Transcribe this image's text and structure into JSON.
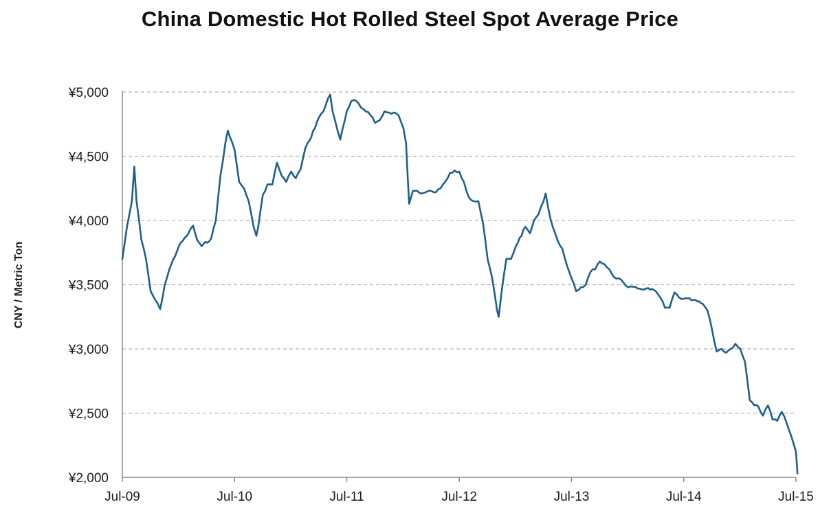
{
  "chart_data": {
    "type": "line",
    "title": "China Domestic Hot Rolled Steel Spot Average Price",
    "xlabel": "",
    "ylabel": "CNY / Metric Ton",
    "ylim": [
      2000,
      5000
    ],
    "xlim": [
      "2009-07",
      "2015-07"
    ],
    "grid": true,
    "legend": "none",
    "colors": {
      "line": "#1f5f8b",
      "grid": "#b5b5b5",
      "axis": "#8a8a8a"
    },
    "y_ticks": [
      {
        "value": 2000,
        "label": "¥2,000"
      },
      {
        "value": 2500,
        "label": "¥2,500"
      },
      {
        "value": 3000,
        "label": "¥3,000"
      },
      {
        "value": 3500,
        "label": "¥3,500"
      },
      {
        "value": 4000,
        "label": "¥4,000"
      },
      {
        "value": 4500,
        "label": "¥4,500"
      },
      {
        "value": 5000,
        "label": "¥5,000"
      }
    ],
    "x_ticks": [
      {
        "value": "2009-07",
        "label": "Jul-09"
      },
      {
        "value": "2010-07",
        "label": "Jul-10"
      },
      {
        "value": "2011-07",
        "label": "Jul-11"
      },
      {
        "value": "2012-07",
        "label": "Jul-12"
      },
      {
        "value": "2013-07",
        "label": "Jul-13"
      },
      {
        "value": "2014-07",
        "label": "Jul-14"
      },
      {
        "value": "2015-07",
        "label": "Jul-15"
      }
    ],
    "series": [
      {
        "values": [
          [
            "2009-07-01",
            3700
          ],
          [
            "2009-07-16",
            3950
          ],
          [
            "2009-08-01",
            4150
          ],
          [
            "2009-08-09",
            4420
          ],
          [
            "2009-08-16",
            4150
          ],
          [
            "2009-09-01",
            3850
          ],
          [
            "2009-09-16",
            3700
          ],
          [
            "2009-10-01",
            3450
          ],
          [
            "2009-10-16",
            3380
          ],
          [
            "2009-11-01",
            3310
          ],
          [
            "2009-11-16",
            3500
          ],
          [
            "2009-12-01",
            3620
          ],
          [
            "2010-01-01",
            3800
          ],
          [
            "2010-02-01",
            3900
          ],
          [
            "2010-02-16",
            3960
          ],
          [
            "2010-03-01",
            3850
          ],
          [
            "2010-03-16",
            3800
          ],
          [
            "2010-04-16",
            3860
          ],
          [
            "2010-05-01",
            4000
          ],
          [
            "2010-05-16",
            4350
          ],
          [
            "2010-06-01",
            4600
          ],
          [
            "2010-06-09",
            4700
          ],
          [
            "2010-06-16",
            4650
          ],
          [
            "2010-07-01",
            4550
          ],
          [
            "2010-07-16",
            4300
          ],
          [
            "2010-08-01",
            4250
          ],
          [
            "2010-08-16",
            4150
          ],
          [
            "2010-09-01",
            3950
          ],
          [
            "2010-09-10",
            3880
          ],
          [
            "2010-09-16",
            3950
          ],
          [
            "2010-10-01",
            4200
          ],
          [
            "2010-10-16",
            4280
          ],
          [
            "2010-11-01",
            4280
          ],
          [
            "2010-11-16",
            4450
          ],
          [
            "2010-12-01",
            4350
          ],
          [
            "2010-12-16",
            4300
          ],
          [
            "2011-01-01",
            4380
          ],
          [
            "2011-01-16",
            4330
          ],
          [
            "2011-02-01",
            4400
          ],
          [
            "2011-02-16",
            4560
          ],
          [
            "2011-03-01",
            4620
          ],
          [
            "2011-04-01",
            4800
          ],
          [
            "2011-04-16",
            4850
          ],
          [
            "2011-05-01",
            4950
          ],
          [
            "2011-05-08",
            4980
          ],
          [
            "2011-05-16",
            4850
          ],
          [
            "2011-06-01",
            4700
          ],
          [
            "2011-06-10",
            4630
          ],
          [
            "2011-06-16",
            4700
          ],
          [
            "2011-07-01",
            4850
          ],
          [
            "2011-07-16",
            4930
          ],
          [
            "2011-08-01",
            4930
          ],
          [
            "2011-08-16",
            4880
          ],
          [
            "2011-09-01",
            4850
          ],
          [
            "2011-09-16",
            4820
          ],
          [
            "2011-10-01",
            4760
          ],
          [
            "2011-10-16",
            4780
          ],
          [
            "2011-11-01",
            4850
          ],
          [
            "2011-11-16",
            4840
          ],
          [
            "2011-12-01",
            4840
          ],
          [
            "2011-12-16",
            4820
          ],
          [
            "2012-01-01",
            4720
          ],
          [
            "2012-01-10",
            4600
          ],
          [
            "2012-01-16",
            4300
          ],
          [
            "2012-01-20",
            4130
          ],
          [
            "2012-02-01",
            4230
          ],
          [
            "2012-02-16",
            4230
          ],
          [
            "2012-03-01",
            4210
          ],
          [
            "2012-04-01",
            4230
          ],
          [
            "2012-04-16",
            4220
          ],
          [
            "2012-05-01",
            4250
          ],
          [
            "2012-05-16",
            4300
          ],
          [
            "2012-06-01",
            4370
          ],
          [
            "2012-06-16",
            4390
          ],
          [
            "2012-07-01",
            4380
          ],
          [
            "2012-07-16",
            4300
          ],
          [
            "2012-08-01",
            4180
          ],
          [
            "2012-08-16",
            4150
          ],
          [
            "2012-09-01",
            4150
          ],
          [
            "2012-09-16",
            3980
          ],
          [
            "2012-10-01",
            3700
          ],
          [
            "2012-10-16",
            3550
          ],
          [
            "2012-11-01",
            3300
          ],
          [
            "2012-11-06",
            3250
          ],
          [
            "2012-11-16",
            3450
          ],
          [
            "2012-12-01",
            3700
          ],
          [
            "2012-12-16",
            3700
          ],
          [
            "2013-01-01",
            3800
          ],
          [
            "2013-02-01",
            3950
          ],
          [
            "2013-02-16",
            3900
          ],
          [
            "2013-03-01",
            4000
          ],
          [
            "2013-03-16",
            4050
          ],
          [
            "2013-04-01",
            4150
          ],
          [
            "2013-04-08",
            4210
          ],
          [
            "2013-04-16",
            4100
          ],
          [
            "2013-05-01",
            3950
          ],
          [
            "2013-05-16",
            3850
          ],
          [
            "2013-06-01",
            3780
          ],
          [
            "2013-06-16",
            3650
          ],
          [
            "2013-07-01",
            3550
          ],
          [
            "2013-07-16",
            3450
          ],
          [
            "2013-08-01",
            3480
          ],
          [
            "2013-08-16",
            3500
          ],
          [
            "2013-09-01",
            3600
          ],
          [
            "2013-09-16",
            3620
          ],
          [
            "2013-10-01",
            3680
          ],
          [
            "2013-10-16",
            3660
          ],
          [
            "2013-11-01",
            3620
          ],
          [
            "2013-11-16",
            3560
          ],
          [
            "2013-12-01",
            3550
          ],
          [
            "2013-12-16",
            3520
          ],
          [
            "2014-01-01",
            3480
          ],
          [
            "2014-02-01",
            3470
          ],
          [
            "2014-03-01",
            3470
          ],
          [
            "2014-04-01",
            3450
          ],
          [
            "2014-04-16",
            3400
          ],
          [
            "2014-05-01",
            3320
          ],
          [
            "2014-05-16",
            3320
          ],
          [
            "2014-06-01",
            3440
          ],
          [
            "2014-06-16",
            3400
          ],
          [
            "2014-07-01",
            3390
          ],
          [
            "2014-08-01",
            3380
          ],
          [
            "2014-09-01",
            3350
          ],
          [
            "2014-09-16",
            3300
          ],
          [
            "2014-10-01",
            3150
          ],
          [
            "2014-10-16",
            2980
          ],
          [
            "2014-11-01",
            3000
          ],
          [
            "2014-11-16",
            2970
          ],
          [
            "2014-12-01",
            3000
          ],
          [
            "2014-12-16",
            3040
          ],
          [
            "2015-01-01",
            3000
          ],
          [
            "2015-01-16",
            2900
          ],
          [
            "2015-02-01",
            2600
          ],
          [
            "2015-02-16",
            2560
          ],
          [
            "2015-03-01",
            2550
          ],
          [
            "2015-03-16",
            2480
          ],
          [
            "2015-04-01",
            2560
          ],
          [
            "2015-04-16",
            2450
          ],
          [
            "2015-05-01",
            2440
          ],
          [
            "2015-05-16",
            2510
          ],
          [
            "2015-06-01",
            2420
          ],
          [
            "2015-06-16",
            2320
          ],
          [
            "2015-07-01",
            2200
          ],
          [
            "2015-07-06",
            2030
          ]
        ]
      }
    ]
  }
}
